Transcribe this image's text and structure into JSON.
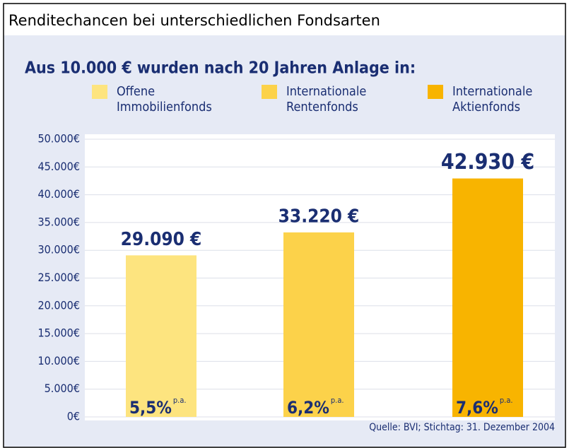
{
  "header": {
    "title": "Renditechancen bei unterschiedlichen Fondsarten"
  },
  "chart_data": {
    "type": "bar",
    "title": "Aus 10.000 € wurden nach 20 Jahren Anlage in:",
    "categories": [
      "Offene Immobilienfonds",
      "Internationale Rentenfonds",
      "Internationale Aktienfonds"
    ],
    "colors": [
      "#fde47f",
      "#fcd24a",
      "#f8b400"
    ],
    "values": [
      29090,
      33220,
      42930
    ],
    "value_labels": [
      "29.090 €",
      "33.220 €",
      "42.930 €"
    ],
    "rates": [
      "5,5%",
      "6,2%",
      "7,6%"
    ],
    "rate_unit": "p.a.",
    "ylim": [
      0,
      50000
    ],
    "yticks": [
      {
        "value": 0,
        "label": "0€"
      },
      {
        "value": 5000,
        "label": "5.000€"
      },
      {
        "value": 10000,
        "label": "10.000€"
      },
      {
        "value": 15000,
        "label": "15.000€"
      },
      {
        "value": 20000,
        "label": "20.000€"
      },
      {
        "value": 25000,
        "label": "25.000€"
      },
      {
        "value": 30000,
        "label": "30.000€"
      },
      {
        "value": 35000,
        "label": "35.000€"
      },
      {
        "value": 40000,
        "label": "40.000€"
      },
      {
        "value": 45000,
        "label": "45.000€"
      },
      {
        "value": 50000,
        "label": "50.000€"
      }
    ],
    "grid": true,
    "source": "Quelle: BVI; Stichtag: 31. Dezember 2004"
  }
}
